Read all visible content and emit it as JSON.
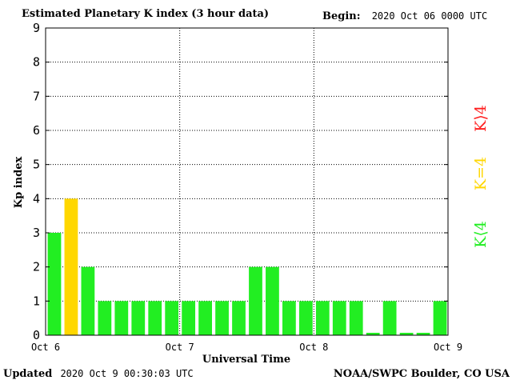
{
  "header": {
    "title": "Estimated Planetary K index (3 hour data)",
    "begin_label": "Begin:",
    "begin_value": "2020 Oct 06 0000 UTC"
  },
  "footer": {
    "updated_label": "Updated",
    "updated_value": "2020 Oct  9 00:30:03 UTC",
    "source": "NOAA/SWPC Boulder, CO USA"
  },
  "legend": {
    "entries": [
      {
        "label": "K⟩4",
        "color": "#ff2020"
      },
      {
        "label": "K=4",
        "color": "#ffd700"
      },
      {
        "label": "K⟨4",
        "color": "#22ee22"
      }
    ]
  },
  "chart_data": {
    "type": "bar",
    "title": "Estimated Planetary K index (3 hour data)",
    "xlabel": "Universal Time",
    "ylabel": "Kp index",
    "ylim": [
      0,
      9
    ],
    "yticks": [
      0,
      1,
      2,
      3,
      4,
      5,
      6,
      7,
      8,
      9
    ],
    "x_tick_labels": [
      "Oct 6",
      "Oct 7",
      "Oct 8",
      "Oct 9"
    ],
    "grid": true,
    "bar_interval_hours": 3,
    "colors": {
      "below_4": "#22ee22",
      "equal_4": "#ffd700",
      "above_4": "#ff2020"
    },
    "values": [
      3,
      4,
      2,
      1,
      1,
      1,
      1,
      1,
      1,
      1,
      1,
      1,
      2,
      2,
      1,
      1,
      1,
      1,
      1,
      0,
      1,
      0,
      0,
      1
    ]
  }
}
